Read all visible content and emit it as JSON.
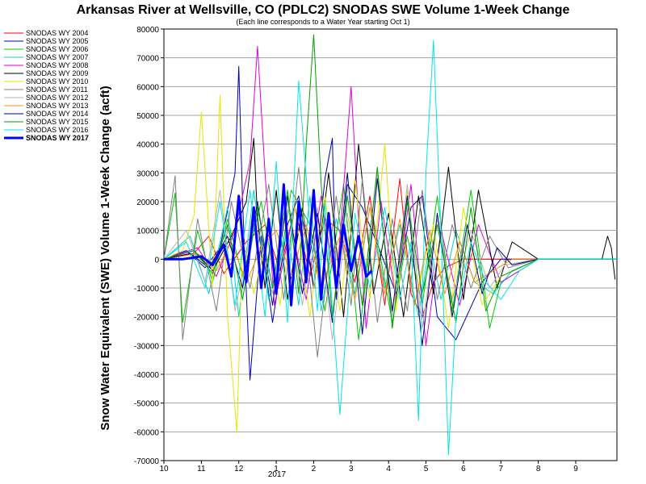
{
  "chart_data": {
    "type": "line",
    "title": "Arkansas River at Wellsville, CO (PDLC2) SNODAS SWE Volume 1-Week Change",
    "subtitle": "(Each line corresponds to a Water Year starting Oct 1)",
    "ylabel": "Snow Water Equivalent (SWE) Volume 1-Week Change (acft)",
    "xlabel": "",
    "year_label": "2017",
    "ylim": [
      -70000,
      80000
    ],
    "y_ticks": [
      -70000,
      -60000,
      -50000,
      -40000,
      -30000,
      -20000,
      -10000,
      0,
      10000,
      20000,
      30000,
      40000,
      50000,
      60000,
      70000,
      80000
    ],
    "x_tick_labels": [
      "10",
      "11",
      "12",
      "1",
      "2",
      "3",
      "4",
      "5",
      "6",
      "7",
      "8",
      "9"
    ],
    "x_tick_positions": [
      0,
      1,
      2,
      3,
      4,
      5,
      6,
      7,
      8,
      9,
      10,
      11
    ],
    "xlim": [
      0,
      12.1
    ],
    "grid": true,
    "legend_position": "left",
    "series": [
      {
        "name": "SNODAS WY 2004",
        "color": "#ff0000",
        "width": 1,
        "x": [
          0,
          0.8,
          1.2,
          1.6,
          2.2,
          2.7,
          3.1,
          3.5,
          3.9,
          4.3,
          4.7,
          5.1,
          5.5,
          5.9,
          6.3,
          6.6,
          6.9,
          7.2,
          7.5,
          8,
          9,
          10,
          11,
          12.1
        ],
        "y": [
          0,
          2000,
          8000,
          -5000,
          6000,
          12000,
          -4000,
          18000,
          -6000,
          14000,
          10000,
          -8000,
          22000,
          -16000,
          28000,
          -12000,
          -20000,
          -8000,
          -3000,
          0,
          0,
          0,
          0,
          0
        ]
      },
      {
        "name": "SNODAS WY 2005",
        "color": "#0000b4",
        "width": 1,
        "x": [
          0,
          0.6,
          1.1,
          1.5,
          1.9,
          2.0,
          2.1,
          2.3,
          2.6,
          2.9,
          3.3,
          3.6,
          4.0,
          4.3,
          4.5,
          4.6,
          4.9,
          5.3,
          5.8,
          6.2,
          6.6,
          6.9,
          7.3,
          7.8,
          8.5,
          9,
          10,
          11,
          12.1
        ],
        "y": [
          0,
          3000,
          -3000,
          4000,
          30000,
          67000,
          20000,
          -42000,
          8000,
          -22000,
          12000,
          22000,
          -10000,
          28000,
          42000,
          -14000,
          26000,
          18000,
          2000,
          -12000,
          18000,
          22000,
          -20000,
          -28000,
          -8000,
          0,
          0,
          0,
          0
        ]
      },
      {
        "name": "SNODAS WY 2006",
        "color": "#00c800",
        "width": 1,
        "x": [
          0,
          0.3,
          0.5,
          0.9,
          1.3,
          1.7,
          2.1,
          2.6,
          3.0,
          3.4,
          3.9,
          4.3,
          4.8,
          5.2,
          5.6,
          6.1,
          6.5,
          6.9,
          7.3,
          7.7,
          8.2,
          8.7,
          9,
          10,
          11,
          12.1
        ],
        "y": [
          0,
          23000,
          -22000,
          10000,
          -8000,
          14000,
          -6000,
          20000,
          -10000,
          24000,
          12000,
          -18000,
          26000,
          -28000,
          14000,
          -22000,
          8000,
          -16000,
          22000,
          -18000,
          24000,
          -24000,
          -8000,
          0,
          0,
          0
        ]
      },
      {
        "name": "SNODAS WY 2007",
        "color": "#00d2d2",
        "width": 1,
        "x": [
          0,
          0.7,
          1.2,
          1.7,
          2.0,
          2.4,
          2.8,
          3.3,
          3.6,
          3.9,
          4.2,
          4.6,
          5.1,
          5.5,
          5.9,
          6.3,
          6.8,
          7.1,
          7.4,
          7.8,
          8.3,
          8.8,
          9.3,
          10,
          11,
          12.1
        ],
        "y": [
          0,
          8000,
          -12000,
          18000,
          -20000,
          24000,
          -14000,
          10000,
          -16000,
          22000,
          -18000,
          14000,
          -12000,
          18000,
          -10000,
          12000,
          -20000,
          6000,
          -14000,
          10000,
          -8000,
          -12000,
          -4000,
          0,
          0,
          0
        ]
      },
      {
        "name": "SNODAS WY 2008",
        "color": "#dc00dc",
        "width": 1,
        "x": [
          0,
          0.9,
          1.4,
          1.9,
          2.3,
          2.5,
          2.7,
          2.95,
          3.4,
          3.8,
          4.2,
          4.6,
          5.0,
          5.2,
          5.4,
          5.8,
          6.2,
          6.6,
          7.0,
          7.4,
          7.9,
          8.4,
          9,
          10,
          11,
          12.1
        ],
        "y": [
          0,
          4000,
          -6000,
          10000,
          34000,
          74000,
          30000,
          -16000,
          12000,
          -14000,
          22000,
          -10000,
          60000,
          14000,
          -24000,
          20000,
          -14000,
          26000,
          -30000,
          10000,
          -16000,
          12000,
          -8000,
          0,
          0,
          0
        ]
      },
      {
        "name": "SNODAS WY 2009",
        "color": "#000000",
        "width": 1,
        "x": [
          0,
          0.8,
          1.3,
          1.8,
          2.2,
          2.4,
          2.5,
          2.7,
          3.0,
          3.3,
          3.7,
          4.0,
          4.4,
          4.8,
          5.2,
          5.6,
          6.0,
          6.4,
          6.8,
          7.2,
          7.6,
          8.0,
          8.4,
          8.9,
          9.3,
          10,
          11,
          11.7,
          11.85,
          11.95,
          12.05
        ],
        "y": [
          0,
          3000,
          -4000,
          8000,
          20000,
          42000,
          14000,
          -10000,
          24000,
          -14000,
          18000,
          -10000,
          30000,
          -20000,
          40000,
          -12000,
          16000,
          -20000,
          22000,
          -12000,
          32000,
          -14000,
          24000,
          -10000,
          6000,
          0,
          0,
          0,
          8000,
          4000,
          -7000
        ]
      },
      {
        "name": "SNODAS WY 2010",
        "color": "#e6e600",
        "width": 1,
        "x": [
          0,
          0.5,
          0.8,
          1.0,
          1.3,
          1.5,
          1.7,
          1.95,
          2.1,
          2.4,
          2.8,
          3.1,
          3.5,
          3.9,
          4.3,
          4.7,
          5.1,
          5.5,
          5.9,
          6.2,
          6.5,
          6.8,
          7.2,
          7.6,
          8.0,
          8.5,
          9,
          10,
          11,
          12.1
        ],
        "y": [
          0,
          3000,
          15000,
          51000,
          -10000,
          57000,
          -20000,
          -60000,
          8000,
          -12000,
          10000,
          -16000,
          18000,
          -20000,
          22000,
          -18000,
          28000,
          -14000,
          40000,
          -18000,
          24000,
          -10000,
          12000,
          -24000,
          18000,
          -16000,
          -6000,
          0,
          0,
          0
        ]
      },
      {
        "name": "SNODAS WY 2011",
        "color": "#7f7f7f",
        "width": 1,
        "x": [
          0,
          0.3,
          0.5,
          0.9,
          1.4,
          1.8,
          2.3,
          2.8,
          3.2,
          3.6,
          4.1,
          4.6,
          5.0,
          5.3,
          5.7,
          6.1,
          6.5,
          6.9,
          7.3,
          7.7,
          8.2,
          8.7,
          9.2,
          10,
          11,
          12.1
        ],
        "y": [
          0,
          29000,
          -28000,
          14000,
          -18000,
          20000,
          -10000,
          26000,
          -14000,
          32000,
          -34000,
          22000,
          -16000,
          28000,
          -22000,
          14000,
          -18000,
          24000,
          -14000,
          12000,
          -10000,
          8000,
          -3000,
          0,
          0,
          0
        ]
      },
      {
        "name": "SNODAS WY 2012",
        "color": "#b4b4b4",
        "width": 1,
        "x": [
          0,
          0.6,
          1.1,
          1.5,
          1.9,
          2.4,
          2.9,
          3.3,
          3.7,
          4.1,
          4.5,
          4.9,
          5.3,
          5.7,
          6.1,
          6.5,
          6.9,
          7.3,
          7.7,
          8.2,
          8.7,
          9.1,
          10,
          11,
          12.1
        ],
        "y": [
          0,
          10000,
          -8000,
          24000,
          -18000,
          14000,
          -12000,
          20000,
          -16000,
          18000,
          -28000,
          16000,
          -14000,
          30000,
          -20000,
          26000,
          -24000,
          14000,
          -14000,
          10000,
          -10000,
          -2000,
          0,
          0,
          0
        ]
      },
      {
        "name": "SNODAS WY 2013",
        "color": "#ff8c00",
        "width": 1,
        "x": [
          0,
          0.9,
          1.4,
          1.8,
          2.2,
          2.6,
          3.0,
          3.4,
          3.8,
          4.2,
          4.7,
          5.1,
          5.5,
          5.9,
          6.3,
          6.7,
          7.1,
          7.5,
          7.9,
          8.3,
          8.8,
          9.3,
          10,
          11,
          12.1
        ],
        "y": [
          0,
          2000,
          -4000,
          6000,
          -8000,
          4000,
          10000,
          -6000,
          12000,
          -10000,
          8000,
          -14000,
          18000,
          -12000,
          14000,
          -16000,
          10000,
          -12000,
          6000,
          -8000,
          -4000,
          0,
          0,
          0,
          0
        ]
      },
      {
        "name": "SNODAS WY 2014",
        "color": "#000078",
        "width": 1,
        "x": [
          0,
          0.7,
          1.2,
          1.7,
          2.1,
          2.5,
          2.9,
          3.3,
          3.7,
          4.1,
          4.5,
          4.9,
          5.3,
          5.7,
          6.1,
          6.5,
          6.9,
          7.3,
          7.7,
          8.1,
          8.5,
          8.9,
          9.3,
          10,
          11,
          12.1
        ],
        "y": [
          0,
          2000,
          -3000,
          8000,
          -10000,
          20000,
          -16000,
          22000,
          -12000,
          16000,
          -22000,
          30000,
          -26000,
          28000,
          -18000,
          22000,
          -30000,
          16000,
          -20000,
          12000,
          -12000,
          4000,
          -2000,
          0,
          0,
          0
        ]
      },
      {
        "name": "SNODAS WY 2015",
        "color": "#00a000",
        "width": 1,
        "x": [
          0,
          0.8,
          1.3,
          1.7,
          2.1,
          2.5,
          2.9,
          3.3,
          3.6,
          3.8,
          4.0,
          4.2,
          4.5,
          4.9,
          5.3,
          5.7,
          6.1,
          6.5,
          6.9,
          7.3,
          7.8,
          8.2,
          8.6,
          9,
          10,
          11,
          12.1
        ],
        "y": [
          0,
          3000,
          -5000,
          12000,
          -14000,
          18000,
          -10000,
          24000,
          -12000,
          40000,
          78000,
          26000,
          -20000,
          22000,
          -16000,
          32000,
          -24000,
          20000,
          -12000,
          12000,
          -22000,
          18000,
          -18000,
          -6000,
          0,
          0,
          0
        ]
      },
      {
        "name": "SNODAS WY 2016",
        "color": "#00e6e6",
        "width": 1,
        "x": [
          0,
          0.6,
          1.1,
          1.5,
          1.9,
          2.3,
          2.7,
          3.0,
          3.3,
          3.6,
          3.9,
          4.1,
          4.3,
          4.7,
          5.1,
          5.5,
          5.9,
          6.3,
          6.6,
          6.8,
          7.0,
          7.2,
          7.4,
          7.6,
          7.8,
          8.2,
          8.6,
          9.0,
          9.5,
          10,
          11,
          12.1
        ],
        "y": [
          0,
          6000,
          -10000,
          20000,
          -16000,
          24000,
          -20000,
          34000,
          -22000,
          62000,
          12000,
          -18000,
          20000,
          -54000,
          16000,
          -10000,
          18000,
          -14000,
          6000,
          -56000,
          30000,
          76000,
          10000,
          -68000,
          -20000,
          6000,
          -8000,
          -14000,
          -4000,
          0,
          0,
          0
        ]
      },
      {
        "name": "SNODAS WY 2017",
        "color": "#0000ff",
        "width": 3,
        "x": [
          0,
          0.5,
          1.0,
          1.3,
          1.6,
          1.8,
          2.0,
          2.2,
          2.4,
          2.6,
          2.8,
          3.0,
          3.2,
          3.4,
          3.6,
          3.8,
          4.0,
          4.2,
          4.4,
          4.6,
          4.8,
          5.0,
          5.2,
          5.4,
          5.55
        ],
        "y": [
          0,
          0,
          1000,
          -2000,
          5000,
          -6000,
          22000,
          -8000,
          18000,
          -10000,
          14000,
          -12000,
          26000,
          -16000,
          20000,
          -8000,
          24000,
          -14000,
          16000,
          -10000,
          12000,
          -4000,
          8000,
          -6000,
          -4000
        ]
      }
    ]
  }
}
